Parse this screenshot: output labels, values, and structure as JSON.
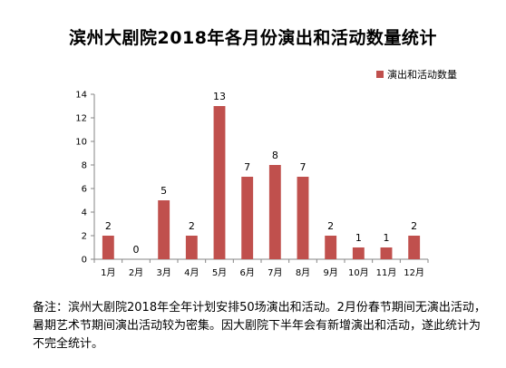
{
  "chart_data": {
    "type": "bar",
    "title": "滨州大剧院2018年各月份演出和活动数量统计",
    "categories": [
      "1月",
      "2月",
      "3月",
      "4月",
      "5月",
      "6月",
      "7月",
      "8月",
      "9月",
      "10月",
      "11月",
      "12月"
    ],
    "series": [
      {
        "name": "演出和活动数量",
        "values": [
          2,
          0,
          5,
          2,
          13,
          7,
          8,
          7,
          2,
          1,
          1,
          2
        ],
        "color": "#c0504d"
      }
    ],
    "ylim": [
      0,
      14
    ],
    "yticks": [
      0,
      2,
      4,
      6,
      8,
      10,
      12,
      14
    ],
    "grid": false,
    "legend_position": "top-right",
    "data_labels": true
  },
  "note": "备注：滨州大剧院2018年全年计划安排50场演出和活动。2月份春节期间无演出活动，暑期艺术节期间演出活动较为密集。因大剧院下半年会有新增演出和活动，遂此统计为不完全统计。"
}
